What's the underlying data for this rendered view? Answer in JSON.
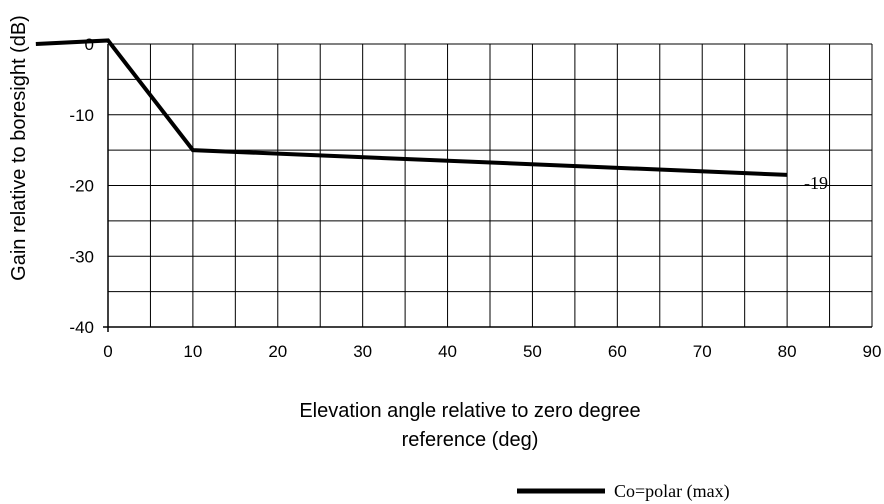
{
  "chart_data": {
    "type": "line",
    "title": "",
    "xlabel_line1": "Elevation angle relative to zero degree",
    "xlabel_line2": "reference (deg)",
    "ylabel": "Gain relative to boresight (dB)",
    "xlim": [
      0,
      90
    ],
    "ylim": [
      -40,
      0
    ],
    "grid": true,
    "x_ticks": [
      0,
      10,
      20,
      30,
      40,
      50,
      60,
      70,
      80,
      90
    ],
    "x_tick_labels": [
      "0",
      "10",
      "20",
      "30",
      "40",
      "50",
      "60",
      "70",
      "80",
      "90"
    ],
    "y_ticks": [
      0,
      -10,
      -20,
      -30,
      -40
    ],
    "y_tick_labels": [
      "0",
      "-10",
      "-20",
      "-30",
      "-40"
    ],
    "legend_position": "bottom-right",
    "series": [
      {
        "name": "Co=polar (max)",
        "color": "#000000",
        "x": [
          -8.5,
          0,
          10,
          80
        ],
        "y": [
          0,
          0.5,
          -15,
          -18.5
        ]
      }
    ],
    "annotations": [
      {
        "text": "-19",
        "x": 80,
        "y": -18.5
      }
    ]
  }
}
